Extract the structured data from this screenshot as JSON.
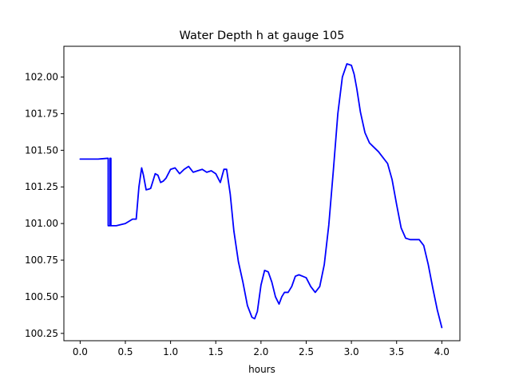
{
  "chart_data": {
    "type": "line",
    "title": "Water Depth h at gauge 105",
    "xlabel": "hours",
    "ylabel": "",
    "xlim": [
      -0.18,
      4.2
    ],
    "ylim": [
      100.2,
      102.21
    ],
    "xticks": [
      0.0,
      0.5,
      1.0,
      1.5,
      2.0,
      2.5,
      3.0,
      3.5,
      4.0
    ],
    "xtick_labels": [
      "0.0",
      "0.5",
      "1.0",
      "1.5",
      "2.0",
      "2.5",
      "3.0",
      "3.5",
      "4.0"
    ],
    "yticks": [
      100.25,
      100.5,
      100.75,
      101.0,
      101.25,
      101.5,
      101.75,
      102.0
    ],
    "ytick_labels": [
      "100.25",
      "100.50",
      "100.75",
      "101.00",
      "101.25",
      "101.50",
      "101.75",
      "102.00"
    ],
    "grid": false,
    "series": [
      {
        "color": "#0000ff",
        "x": [
          0.0,
          0.1,
          0.2,
          0.3,
          0.31,
          0.31,
          0.33,
          0.33,
          0.34,
          0.34,
          0.4,
          0.5,
          0.58,
          0.62,
          0.65,
          0.68,
          0.7,
          0.73,
          0.76,
          0.78,
          0.8,
          0.83,
          0.86,
          0.89,
          0.92,
          0.95,
          1.0,
          1.05,
          1.1,
          1.15,
          1.2,
          1.25,
          1.3,
          1.35,
          1.4,
          1.45,
          1.5,
          1.55,
          1.59,
          1.62,
          1.66,
          1.7,
          1.75,
          1.8,
          1.85,
          1.9,
          1.93,
          1.96,
          2.0,
          2.04,
          2.08,
          2.12,
          2.16,
          2.2,
          2.23,
          2.26,
          2.3,
          2.34,
          2.38,
          2.42,
          2.46,
          2.5,
          2.55,
          2.6,
          2.65,
          2.7,
          2.75,
          2.8,
          2.85,
          2.9,
          2.95,
          3.0,
          3.03,
          3.06,
          3.1,
          3.15,
          3.2,
          3.25,
          3.3,
          3.35,
          3.4,
          3.45,
          3.5,
          3.55,
          3.6,
          3.65,
          3.7,
          3.75,
          3.8,
          3.85,
          3.9,
          3.95,
          4.0
        ],
        "y": [
          101.44,
          101.44,
          101.44,
          101.445,
          101.445,
          100.985,
          100.985,
          101.445,
          101.445,
          100.985,
          100.985,
          101.0,
          101.03,
          101.03,
          101.25,
          101.38,
          101.33,
          101.23,
          101.235,
          101.24,
          101.28,
          101.34,
          101.33,
          101.28,
          101.29,
          101.31,
          101.37,
          101.38,
          101.34,
          101.37,
          101.39,
          101.35,
          101.36,
          101.37,
          101.35,
          101.36,
          101.34,
          101.28,
          101.37,
          101.37,
          101.2,
          100.95,
          100.74,
          100.6,
          100.44,
          100.36,
          100.35,
          100.4,
          100.58,
          100.68,
          100.67,
          100.6,
          100.5,
          100.45,
          100.5,
          100.53,
          100.53,
          100.57,
          100.64,
          100.65,
          100.64,
          100.63,
          100.57,
          100.53,
          100.57,
          100.72,
          100.99,
          101.36,
          101.75,
          102.0,
          102.09,
          102.08,
          102.02,
          101.92,
          101.76,
          101.62,
          101.55,
          101.52,
          101.49,
          101.45,
          101.41,
          101.3,
          101.13,
          100.97,
          100.9,
          100.89,
          100.89,
          100.89,
          100.85,
          100.72,
          100.56,
          100.41,
          100.29
        ]
      }
    ]
  }
}
